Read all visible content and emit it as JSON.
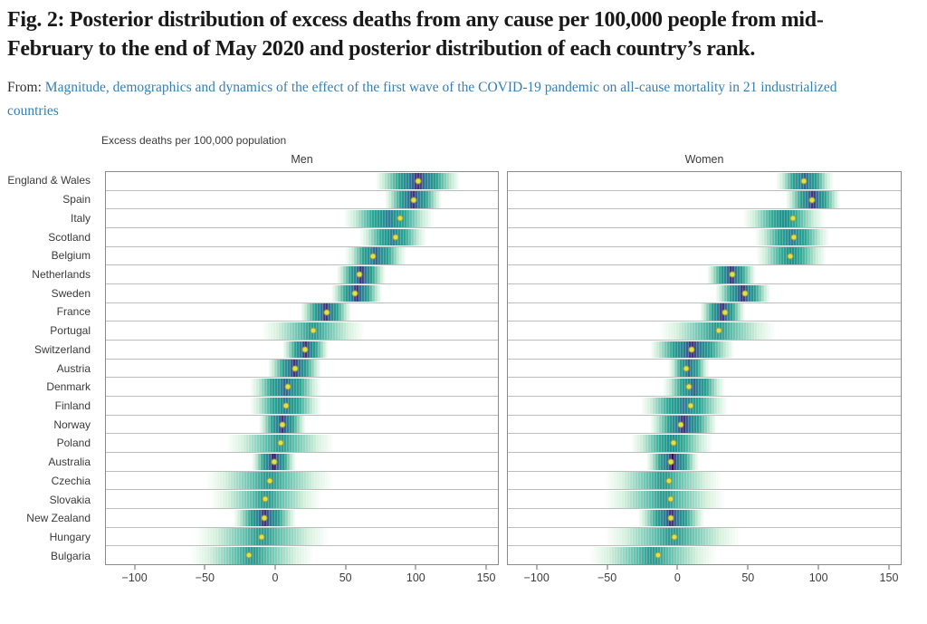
{
  "figure": {
    "title": "Fig. 2: Posterior distribution of excess deaths from any cause per 100,000 people from mid-February to the end of May 2020 and posterior distribution of each country’s rank.",
    "source_prefix": "From: ",
    "source_link": "Magnitude, demographics and dynamics of the effect of the first wave of the COVID-19 pandemic on all-cause mortality in 21 industrialized countries"
  },
  "colors": {
    "title_text": "#191919",
    "body_text": "#2e2e2e",
    "link": "#3a7fae",
    "chart_text": "#3a3a3a",
    "panel_border": "#8a8a8a",
    "gridline": "#bdbdbd",
    "median_marker": "#dfe24b",
    "density_palette": {
      "purple-dark": "#440154",
      "purple": "#46327e",
      "blue": "#31688e",
      "blue-teal": "#2f7e99",
      "teal": "#21918c",
      "teal-light": "#2aa795"
    }
  },
  "chart_data": {
    "type": "heatmap",
    "representation": "horizontal posterior-density strips per country; color intensity encodes posterior density (viridis: dark purple = highest density, teal/green = lower), yellow dot marks the posterior median",
    "title": "Excess deaths per 100,000 population",
    "panels": [
      "Men",
      "Women"
    ],
    "x_ticks": [
      -100,
      -50,
      0,
      50,
      100,
      150
    ],
    "x_tick_labels": [
      "−100",
      "−50",
      "0",
      "50",
      "100",
      "150"
    ],
    "x_range": [
      -121,
      159
    ],
    "grid": "horizontal row separators only",
    "legend": "none",
    "rows": [
      {
        "country": "England & Wales",
        "men": {
          "median": 102,
          "lo": 72,
          "hi": 132,
          "peak": "purple"
        },
        "women": {
          "median": 90,
          "lo": 70,
          "hi": 111,
          "peak": "blue"
        }
      },
      {
        "country": "Spain",
        "men": {
          "median": 99,
          "lo": 78,
          "hi": 119,
          "peak": "purple"
        },
        "women": {
          "median": 96,
          "lo": 77,
          "hi": 116,
          "peak": "purple"
        }
      },
      {
        "country": "Italy",
        "men": {
          "median": 89,
          "lo": 49,
          "hi": 113,
          "peak": "blue-teal"
        },
        "women": {
          "median": 82,
          "lo": 47,
          "hi": 105,
          "peak": "teal"
        }
      },
      {
        "country": "Scotland",
        "men": {
          "median": 86,
          "lo": 60,
          "hi": 108,
          "peak": "blue-teal"
        },
        "women": {
          "median": 83,
          "lo": 55,
          "hi": 108,
          "peak": "blue-teal"
        }
      },
      {
        "country": "Belgium",
        "men": {
          "median": 70,
          "lo": 50,
          "hi": 94,
          "peak": "blue"
        },
        "women": {
          "median": 80,
          "lo": 56,
          "hi": 106,
          "peak": "teal"
        }
      },
      {
        "country": "Netherlands",
        "men": {
          "median": 60,
          "lo": 44,
          "hi": 79,
          "peak": "purple"
        },
        "women": {
          "median": 39,
          "lo": 21,
          "hi": 56,
          "peak": "purple"
        }
      },
      {
        "country": "Sweden",
        "men": {
          "median": 57,
          "lo": 40,
          "hi": 76,
          "peak": "purple"
        },
        "women": {
          "median": 48,
          "lo": 27,
          "hi": 66,
          "peak": "purple"
        }
      },
      {
        "country": "France",
        "men": {
          "median": 37,
          "lo": 18,
          "hi": 54,
          "peak": "purple"
        },
        "women": {
          "median": 34,
          "lo": 16,
          "hi": 48,
          "peak": "purple"
        }
      },
      {
        "country": "Portugal",
        "men": {
          "median": 27,
          "lo": -10,
          "hi": 64,
          "peak": "teal-light"
        },
        "women": {
          "median": 29,
          "lo": -13,
          "hi": 70,
          "peak": "teal-light"
        }
      },
      {
        "country": "Switzerland",
        "men": {
          "median": 21,
          "lo": 5,
          "hi": 38,
          "peak": "purple"
        },
        "women": {
          "median": 10,
          "lo": -20,
          "hi": 40,
          "peak": "purple"
        }
      },
      {
        "country": "Austria",
        "men": {
          "median": 14,
          "lo": -5,
          "hi": 33,
          "peak": "purple"
        },
        "women": {
          "median": 6,
          "lo": -7,
          "hi": 23,
          "peak": "blue"
        }
      },
      {
        "country": "Denmark",
        "men": {
          "median": 9,
          "lo": -18,
          "hi": 33,
          "peak": "blue"
        },
        "women": {
          "median": 8,
          "lo": -11,
          "hi": 34,
          "peak": "blue"
        }
      },
      {
        "country": "Finland",
        "men": {
          "median": 8,
          "lo": -18,
          "hi": 33,
          "peak": "blue-teal"
        },
        "women": {
          "median": 9,
          "lo": -26,
          "hi": 36,
          "peak": "blue-teal"
        }
      },
      {
        "country": "Norway",
        "men": {
          "median": 5,
          "lo": -12,
          "hi": 22,
          "peak": "purple"
        },
        "women": {
          "median": 2,
          "lo": -20,
          "hi": 28,
          "peak": "purple"
        }
      },
      {
        "country": "Poland",
        "men": {
          "median": 4,
          "lo": -35,
          "hi": 42,
          "peak": "teal-light"
        },
        "women": {
          "median": -3,
          "lo": -33,
          "hi": 25,
          "peak": "teal"
        }
      },
      {
        "country": "Australia",
        "men": {
          "median": -1,
          "lo": -17,
          "hi": 15,
          "peak": "purple-dark"
        },
        "women": {
          "median": -5,
          "lo": -22,
          "hi": 15,
          "peak": "purple-dark"
        }
      },
      {
        "country": "Czechia",
        "men": {
          "median": -4,
          "lo": -50,
          "hi": 41,
          "peak": "teal-light"
        },
        "women": {
          "median": -6,
          "lo": -52,
          "hi": 32,
          "peak": "teal-light"
        }
      },
      {
        "country": "Slovakia",
        "men": {
          "median": -7,
          "lo": -46,
          "hi": 33,
          "peak": "teal-light"
        },
        "women": {
          "median": -5,
          "lo": -52,
          "hi": 34,
          "peak": "teal-light"
        }
      },
      {
        "country": "New Zealand",
        "men": {
          "median": -8,
          "lo": -30,
          "hi": 15,
          "peak": "purple"
        },
        "women": {
          "median": -5,
          "lo": -28,
          "hi": 19,
          "peak": "purple"
        }
      },
      {
        "country": "Hungary",
        "men": {
          "median": -10,
          "lo": -57,
          "hi": 38,
          "peak": "teal-light"
        },
        "women": {
          "median": -2,
          "lo": -52,
          "hi": 45,
          "peak": "teal-light"
        }
      },
      {
        "country": "Bulgaria",
        "men": {
          "median": -19,
          "lo": -61,
          "hi": 28,
          "peak": "teal-light"
        },
        "women": {
          "median": -14,
          "lo": -63,
          "hi": 28,
          "peak": "teal-light"
        }
      }
    ]
  }
}
